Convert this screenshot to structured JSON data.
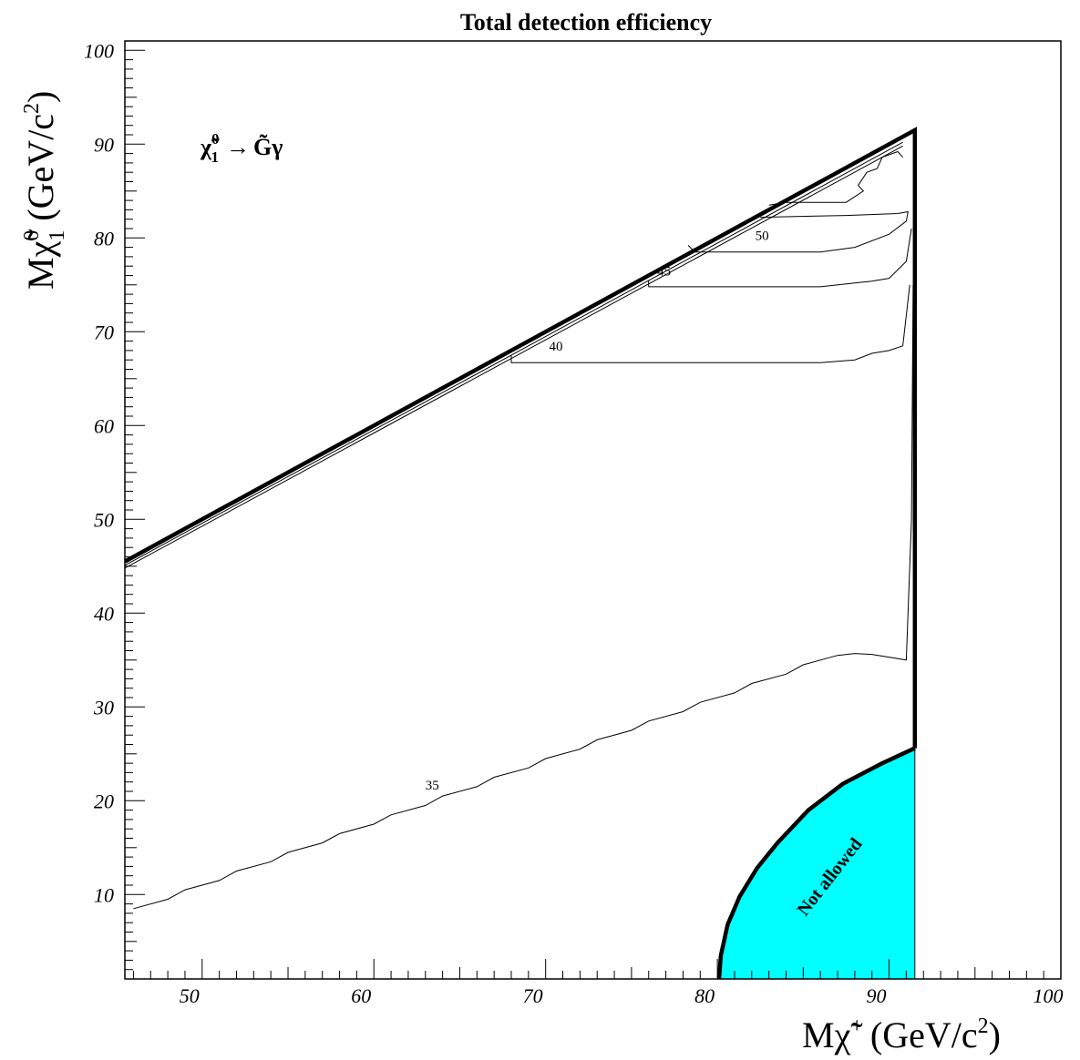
{
  "chart_data": {
    "type": "contour",
    "title": "Total detection efficiency",
    "process": {
      "initial": "χ̃",
      "initial_sub": "1",
      "initial_sup": "0",
      "arrow": "→",
      "final": "G̃γ"
    },
    "xlabel": {
      "prefix": "M",
      "particle": "χ̃",
      "charge": "+",
      "units": "(GeV/c",
      "power": "2",
      "close": ")"
    },
    "ylabel": {
      "prefix": "M",
      "particle": "χ̃",
      "sub": "1",
      "sup": "0",
      "units": "(GeV/c",
      "power": "2",
      "close": ")"
    },
    "xlim": [
      45.5,
      100
    ],
    "ylim": [
      1,
      101
    ],
    "x_ticks": [
      50,
      60,
      70,
      80,
      90,
      100
    ],
    "x_tick_labels": [
      "50",
      "60",
      "70",
      "80",
      "90",
      "100"
    ],
    "y_ticks": [
      10,
      20,
      30,
      40,
      50,
      60,
      70,
      80,
      90,
      100
    ],
    "y_tick_labels": [
      "10",
      "20",
      "30",
      "40",
      "50",
      "60",
      "70",
      "80",
      "90",
      "100"
    ],
    "boundary": [
      [
        45.5,
        45.5
      ],
      [
        91.5,
        91.5
      ],
      [
        91.5,
        25.6
      ]
    ],
    "contours": [
      {
        "level": "35",
        "label_at": [
          63,
          21.2
        ],
        "points": [
          [
            46,
            8.5
          ],
          [
            48,
            9.5
          ],
          [
            49,
            10.5
          ],
          [
            51,
            11.5
          ],
          [
            52,
            12.5
          ],
          [
            54,
            13.5
          ],
          [
            55,
            14.5
          ],
          [
            57,
            15.5
          ],
          [
            58,
            16.5
          ],
          [
            60,
            17.5
          ],
          [
            61,
            18.5
          ],
          [
            63,
            19.5
          ],
          [
            64,
            20.5
          ],
          [
            66,
            21.5
          ],
          [
            67,
            22.5
          ],
          [
            69,
            23.5
          ],
          [
            70,
            24.5
          ],
          [
            72,
            25.5
          ],
          [
            73,
            26.5
          ],
          [
            75,
            27.5
          ],
          [
            76,
            28.5
          ],
          [
            78,
            29.5
          ],
          [
            79,
            30.5
          ],
          [
            81,
            31.5
          ],
          [
            82,
            32.5
          ],
          [
            84,
            33.5
          ],
          [
            85,
            34.5
          ],
          [
            87,
            35.5
          ],
          [
            88,
            35.7
          ],
          [
            89,
            35.6
          ],
          [
            91,
            35.0
          ],
          [
            91.3,
            50
          ],
          [
            91.4,
            75
          ]
        ]
      },
      {
        "level": "40",
        "label_at": [
          70.2,
          68.0
        ],
        "points": [
          [
            68,
            67.5
          ],
          [
            68,
            66.7
          ],
          [
            75,
            66.7
          ],
          [
            82,
            66.7
          ],
          [
            86,
            66.7
          ],
          [
            88,
            67.0
          ],
          [
            89,
            67.7
          ],
          [
            90,
            68.0
          ],
          [
            90.8,
            68.5
          ],
          [
            91.2,
            75
          ]
        ]
      },
      {
        "level": "45",
        "label_at": [
          76.5,
          76.0
        ],
        "points": [
          [
            76,
            75.5
          ],
          [
            76,
            74.8
          ],
          [
            82,
            74.8
          ],
          [
            86,
            74.8
          ],
          [
            88,
            75.2
          ],
          [
            89,
            75.4
          ],
          [
            90,
            75.7
          ],
          [
            91,
            77.5
          ],
          [
            91.3,
            81
          ]
        ]
      },
      {
        "level": "50",
        "label_at": [
          82.2,
          79.8
        ],
        "points": [
          [
            78.3,
            79.2
          ],
          [
            78.7,
            78.5
          ],
          [
            84,
            78.5
          ],
          [
            86,
            78.5
          ],
          [
            88,
            79.0
          ],
          [
            90,
            80.4
          ],
          [
            91.0,
            81.8
          ],
          [
            91.1,
            82.8
          ],
          [
            90.5,
            82.6
          ],
          [
            87.5,
            82.4
          ],
          [
            82.5,
            82.2
          ]
        ]
      },
      {
        "level": "",
        "label_at": null,
        "points": [
          [
            83,
            83.5
          ],
          [
            84,
            83.8
          ],
          [
            87.5,
            83.8
          ],
          [
            88.5,
            85.0
          ],
          [
            88.2,
            85.6
          ],
          [
            88.7,
            87.0
          ],
          [
            89.3,
            87.4
          ],
          [
            89.6,
            88.6
          ],
          [
            90.5,
            89.2
          ],
          [
            90.8,
            88.6
          ]
        ]
      }
    ],
    "diagonal_bands": [
      [
        45.5,
        45.1,
        90.8,
        90.2
      ],
      [
        45.5,
        44.8,
        90.8,
        89.8
      ]
    ],
    "excluded_region": {
      "label": "Not allowed",
      "color": "#00ffff",
      "points": [
        [
          80.1,
          1
        ],
        [
          80.2,
          3.5
        ],
        [
          80.6,
          6.8
        ],
        [
          81.3,
          9.8
        ],
        [
          82.3,
          12.8
        ],
        [
          83.5,
          15.5
        ],
        [
          85.3,
          19
        ],
        [
          87.3,
          21.8
        ],
        [
          89.5,
          23.9
        ],
        [
          91.5,
          25.6
        ],
        [
          91.5,
          1
        ]
      ]
    }
  }
}
